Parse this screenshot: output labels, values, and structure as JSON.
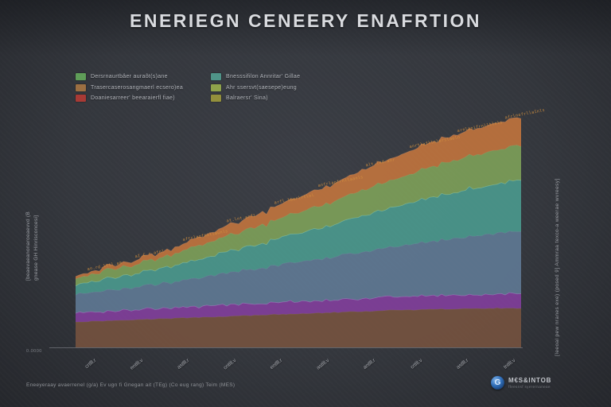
{
  "title": "ENERIEGN CENEERY ENAFRTION",
  "theme": {
    "background": "#34373d",
    "annotation_color": "#d4913f",
    "logo_blue": "#2f6db8",
    "axis_color": "#6e7178"
  },
  "legend": {
    "items": [
      {
        "label": "Dersrnaurtbâer auraôt(s)ane",
        "color": "#5f9d58"
      },
      {
        "label": "Trasercaserosangmaerl ecsero)ea",
        "color": "#9c6f42"
      },
      {
        "label": "Doaniesarreer' beearaierfl fiae)",
        "color": "#a83a35"
      },
      {
        "label": "Bnesssifilon Annritar' Gillae",
        "color": "#4f9488"
      },
      {
        "label": "Ahr ssersvt(saesepe)eung",
        "color": "#8fa34b"
      },
      {
        "label": "Balraersr' Sina)",
        "color": "#93903c"
      }
    ]
  },
  "axes": {
    "y_zero_label": "0.0000",
    "y_label_line1": "[beaevaeanonaroeaevvd (B",
    "y_label_line2": "gnease GH Hinrisconcesi]",
    "right_label": "[Ieeoal pew nranes exe) (posed 9]   Ammraa texco-a weerae wvreesy]",
    "x_ticks": [
      "crtlll.r",
      "entlll.v",
      "astlll.r",
      "cntlll.v",
      "entlll.r",
      "astlll.v",
      "antlll.r",
      "crtlll.v",
      "astlll.r",
      "tntlll.v"
    ]
  },
  "annotations": [
    "an.rd.lttl.am",
    "aI.C.r.afnl",
    "aftrlaofniliaunls",
    "at.lnt.arfl",
    "arfl.lberlrtlnl",
    "anfrlaofrnllaanls",
    "alt.lnd.anr",
    "anrtlafllnlerslaoln",
    "arnlaoifrnlltlnls",
    "afrlnofrllaInls"
  ],
  "caption": "Eneeyeraay avaerrenel (g/a) Ev ugn fi Gnegan ait (TEg) (Co eug rang) Teim (MES)",
  "logo": {
    "icon_glyph": "G",
    "text": "M€S&INTOB",
    "subtext": "ffeesnsf syerernaneae"
  },
  "chart_data": {
    "type": "area",
    "stacked": true,
    "title": "ENERIEGN CENEERY ENAFRTION",
    "xlabel": "",
    "ylabel": "[beaevaeanonaroeaevvd (B gnease GH Hinrisconcesi]",
    "grid": false,
    "legend_position": "top-left",
    "x_points": 15,
    "x": [
      0,
      1,
      2,
      3,
      4,
      5,
      6,
      7,
      8,
      9,
      10,
      11,
      12,
      13,
      14
    ],
    "ylim": [
      0,
      105
    ],
    "series": [
      {
        "name": "band-1-brown",
        "color": "#7d5540",
        "values": [
          11,
          11.5,
          12,
          12.5,
          13,
          13.5,
          14,
          14.5,
          15,
          15.5,
          16,
          16.3,
          16.6,
          16.8,
          17
        ]
      },
      {
        "name": "band-2-purple",
        "color": "#8a3fa6",
        "values": [
          4,
          4.2,
          4.5,
          4.4,
          4.8,
          5,
          5.2,
          5.5,
          5.3,
          5.6,
          5.8,
          6,
          5.9,
          6.1,
          6.2
        ]
      },
      {
        "name": "band-3-slate",
        "color": "#64809e",
        "values": [
          8,
          9,
          10,
          11,
          12.5,
          14,
          15.5,
          17,
          18.5,
          20,
          21.5,
          23,
          24.5,
          26,
          27
        ]
      },
      {
        "name": "band-4-teal",
        "color": "#4da496",
        "values": [
          4,
          5,
          6,
          7,
          8,
          9.5,
          11,
          12.5,
          14,
          15.5,
          17,
          18.5,
          20,
          21,
          22
        ]
      },
      {
        "name": "band-5-green",
        "color": "#85ab5b",
        "values": [
          3,
          3.5,
          4,
          5,
          6,
          7,
          8,
          9,
          10,
          11,
          12,
          13,
          14,
          14.5,
          15
        ]
      },
      {
        "name": "band-6-orange",
        "color": "#cf7a3d",
        "values": [
          1,
          1.5,
          2,
          2.5,
          3.5,
          4.5,
          5.5,
          6.5,
          7.5,
          8.5,
          9.5,
          10.5,
          11,
          11.5,
          12
        ]
      }
    ]
  }
}
